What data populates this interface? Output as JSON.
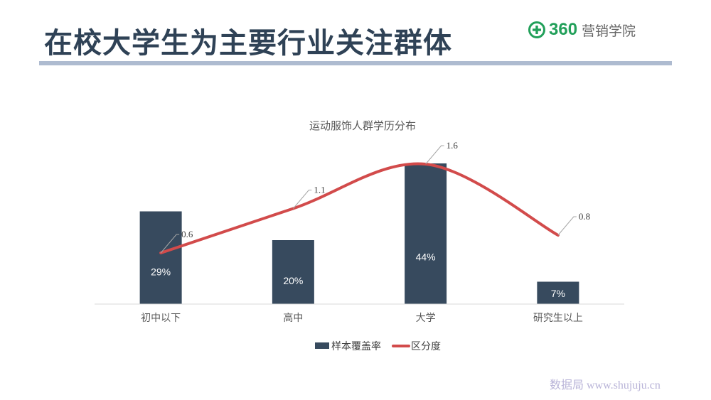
{
  "header": {
    "title": "在校大学生为主要行业关注群体",
    "brand_number": "360",
    "brand_text": "营销学院",
    "brand_color": "#22a05a"
  },
  "watermark": "数据局 www.shujuju.cn",
  "chart_data": {
    "type": "bar",
    "title": "运动服饰人群学历分布",
    "categories": [
      "初中以下",
      "高中",
      "大学",
      "研究生以上"
    ],
    "series": [
      {
        "name": "样本覆盖率",
        "type": "bar",
        "color": "#374a5e",
        "values": [
          29,
          20,
          44,
          7
        ],
        "labels": [
          "29%",
          "20%",
          "44%",
          "7%"
        ]
      },
      {
        "name": "区分度",
        "type": "line",
        "smooth": true,
        "color": "#d24b4b",
        "values": [
          0.6,
          1.1,
          1.6,
          0.8
        ],
        "labels": [
          "0.6",
          "1.1",
          "1.6",
          "0.8"
        ]
      }
    ],
    "legend": "bottom",
    "grid": false
  }
}
